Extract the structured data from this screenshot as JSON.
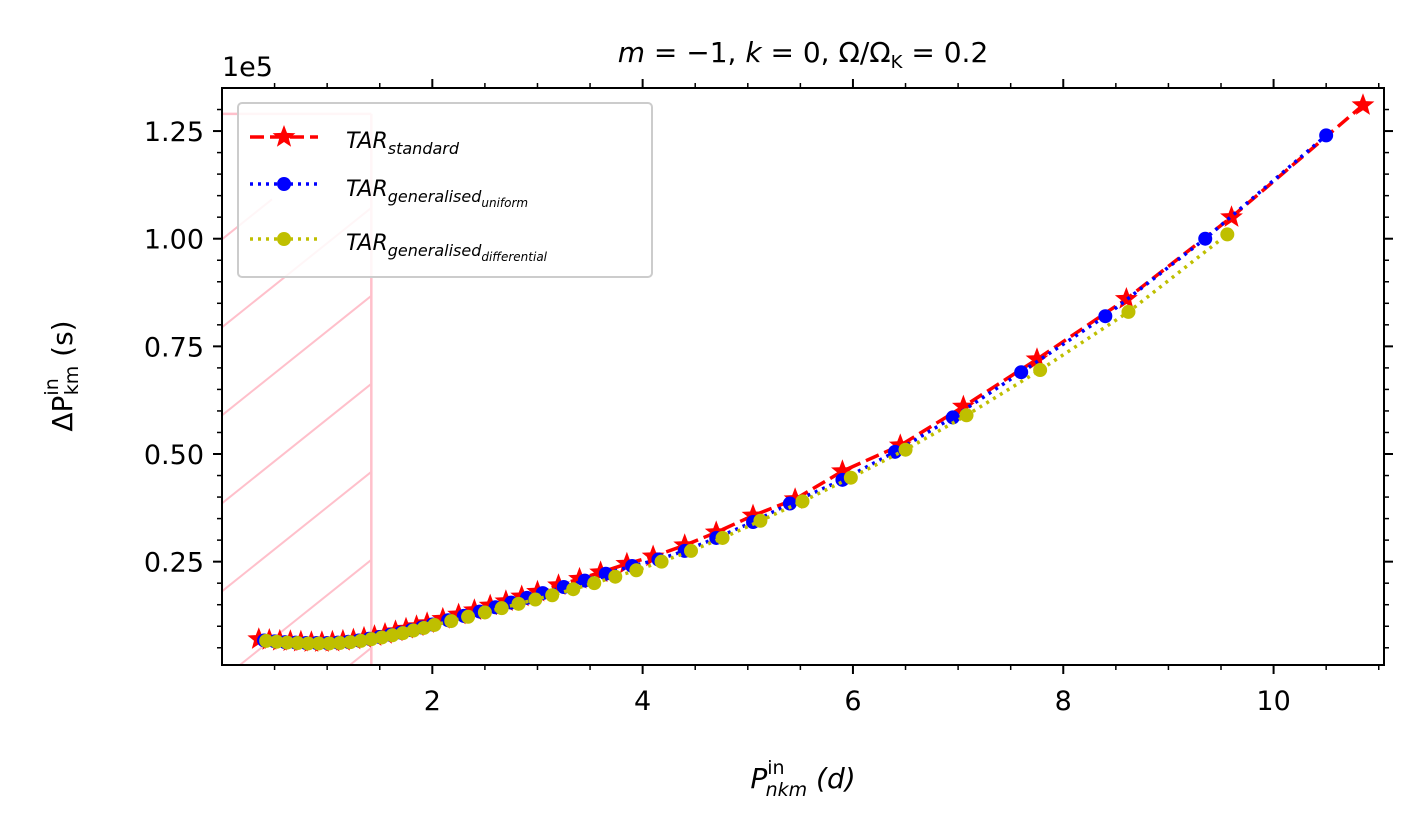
{
  "chart_data": {
    "type": "line",
    "title_parts": {
      "m": "m",
      "eq1": " = −1, ",
      "k": "k",
      "eq2": " = 0, Ω/Ω",
      "K": "K",
      "eq3": " = 0.2"
    },
    "y_scale_label": "1e5",
    "xlabel_parts": {
      "P": "P",
      "sup": "in",
      "sub": "nkm",
      "unit": " (d)"
    },
    "ylabel_parts": {
      "dP": "ΔP",
      "sup": "in",
      "sub": "km",
      "unit": " (s)"
    },
    "xlim": [
      0,
      11.05
    ],
    "ylim": [
      0.01,
      1.35
    ],
    "x_ticks": [
      2,
      4,
      6,
      8,
      10
    ],
    "x_tick_labels": [
      "2",
      "4",
      "6",
      "8",
      "10"
    ],
    "y_ticks": [
      0.25,
      0.5,
      0.75,
      1.0,
      1.25
    ],
    "y_tick_labels": [
      "0.25",
      "0.50",
      "0.75",
      "1.00",
      "1.25"
    ],
    "shaded_region": {
      "x": [
        0,
        1.42
      ],
      "y": [
        0,
        1.29
      ],
      "color": "#ffc0cb",
      "hatch": "diagonal"
    },
    "legend": {
      "position": "upper-left",
      "entries": [
        {
          "base": "TAR",
          "sub": "standard",
          "subsub": ""
        },
        {
          "base": "TAR",
          "sub": "generalised",
          "subsub": "uniform"
        },
        {
          "base": "TAR",
          "sub": "generalised",
          "subsub": "differential"
        }
      ]
    },
    "series": [
      {
        "name": "TAR_standard",
        "color": "#ff0000",
        "line": "dashed",
        "marker": "star",
        "x": [
          0.35,
          0.45,
          0.55,
          0.65,
          0.75,
          0.85,
          0.95,
          1.05,
          1.15,
          1.25,
          1.35,
          1.45,
          1.55,
          1.65,
          1.75,
          1.85,
          1.95,
          2.1,
          2.25,
          2.4,
          2.55,
          2.7,
          2.85,
          3.0,
          3.2,
          3.4,
          3.6,
          3.85,
          4.1,
          4.4,
          4.7,
          5.05,
          5.45,
          5.9,
          6.45,
          7.05,
          7.75,
          8.6,
          9.6,
          10.85
        ],
        "y": [
          0.07,
          0.068,
          0.066,
          0.065,
          0.064,
          0.063,
          0.063,
          0.064,
          0.066,
          0.069,
          0.073,
          0.077,
          0.082,
          0.088,
          0.094,
          0.1,
          0.107,
          0.117,
          0.127,
          0.137,
          0.148,
          0.158,
          0.169,
          0.18,
          0.195,
          0.21,
          0.225,
          0.245,
          0.262,
          0.288,
          0.318,
          0.357,
          0.395,
          0.46,
          0.52,
          0.61,
          0.72,
          0.86,
          1.05,
          1.31
        ]
      },
      {
        "name": "TAR_generalised_uniform",
        "color": "#0000ff",
        "line": "dotted",
        "marker": "circle",
        "x": [
          0.4,
          0.5,
          0.6,
          0.7,
          0.8,
          0.9,
          1.0,
          1.1,
          1.2,
          1.3,
          1.4,
          1.5,
          1.6,
          1.7,
          1.8,
          1.9,
          2.0,
          2.15,
          2.3,
          2.45,
          2.6,
          2.75,
          2.9,
          3.05,
          3.25,
          3.45,
          3.65,
          3.9,
          4.15,
          4.4,
          4.7,
          5.05,
          5.4,
          5.9,
          6.4,
          6.95,
          7.6,
          8.4,
          9.35,
          10.5
        ],
        "y": [
          0.067,
          0.065,
          0.063,
          0.062,
          0.061,
          0.061,
          0.061,
          0.062,
          0.064,
          0.067,
          0.071,
          0.075,
          0.08,
          0.085,
          0.091,
          0.097,
          0.104,
          0.114,
          0.124,
          0.134,
          0.144,
          0.155,
          0.166,
          0.177,
          0.191,
          0.206,
          0.222,
          0.24,
          0.255,
          0.275,
          0.305,
          0.342,
          0.385,
          0.44,
          0.505,
          0.585,
          0.69,
          0.82,
          1.0,
          1.24
        ]
      },
      {
        "name": "TAR_generalised_differential",
        "color": "#bfbf00",
        "line": "dotted",
        "marker": "circle",
        "x": [
          0.42,
          0.52,
          0.62,
          0.72,
          0.82,
          0.92,
          1.02,
          1.12,
          1.22,
          1.32,
          1.42,
          1.52,
          1.62,
          1.72,
          1.82,
          1.92,
          2.02,
          2.18,
          2.34,
          2.5,
          2.66,
          2.82,
          2.98,
          3.14,
          3.34,
          3.54,
          3.74,
          3.94,
          4.18,
          4.46,
          4.76,
          5.12,
          5.52,
          5.98,
          6.5,
          7.08,
          7.78,
          8.62,
          9.56
        ],
        "y": [
          0.066,
          0.064,
          0.062,
          0.061,
          0.06,
          0.06,
          0.06,
          0.061,
          0.063,
          0.066,
          0.07,
          0.074,
          0.079,
          0.084,
          0.09,
          0.096,
          0.103,
          0.112,
          0.122,
          0.132,
          0.142,
          0.152,
          0.162,
          0.172,
          0.186,
          0.2,
          0.215,
          0.23,
          0.25,
          0.275,
          0.305,
          0.345,
          0.39,
          0.445,
          0.51,
          0.59,
          0.695,
          0.83,
          1.01
        ]
      }
    ]
  }
}
